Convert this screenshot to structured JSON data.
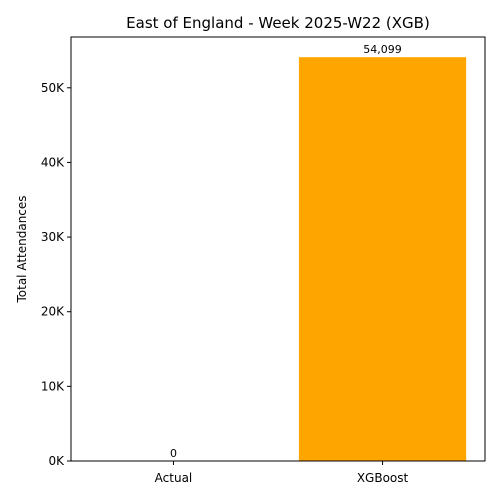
{
  "chart_data": {
    "type": "bar",
    "title": "East of England - Week 2025-W22 (XGB)",
    "xlabel": "",
    "ylabel": "Total Attendances",
    "categories": [
      "Actual",
      "XGBoost"
    ],
    "values": [
      0,
      54099
    ],
    "data_labels": [
      "0",
      "54,099"
    ],
    "ylim": [
      0,
      56805
    ],
    "yticks": [
      {
        "value": 0,
        "label": "0K"
      },
      {
        "value": 10000,
        "label": "10K"
      },
      {
        "value": 20000,
        "label": "20K"
      },
      {
        "value": 30000,
        "label": "30K"
      },
      {
        "value": 40000,
        "label": "40K"
      },
      {
        "value": 50000,
        "label": "50K"
      }
    ],
    "bar_colors": [
      "#1f77b4",
      "#ffa500"
    ],
    "grid": false,
    "legend": "none"
  }
}
